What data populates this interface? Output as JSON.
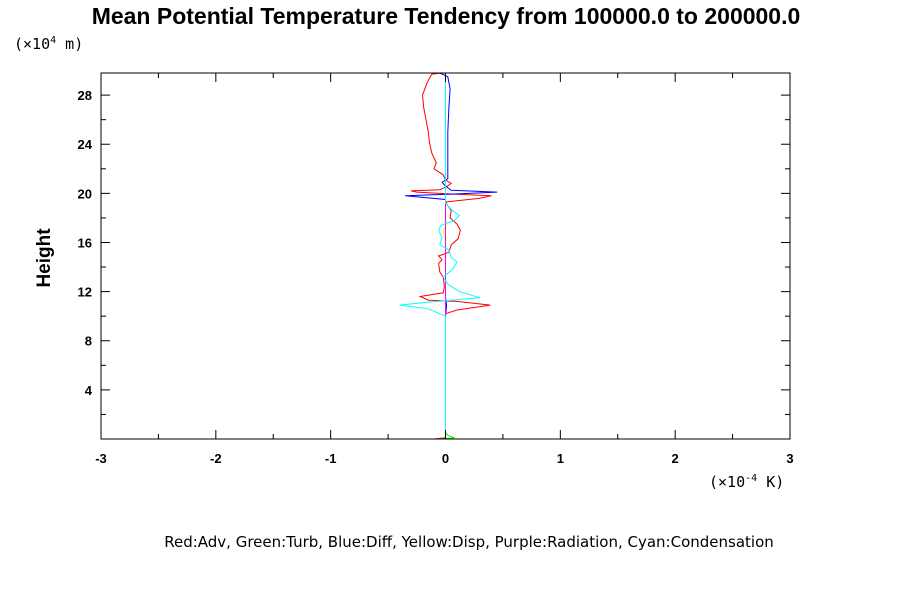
{
  "chart_data": {
    "type": "line",
    "title": "Mean Potential Temperature Tendency from 100000.0 to 200000.0",
    "ylabel": "Height",
    "y_unit": "(×10⁴ m)",
    "x_unit": "(×10⁻⁴ K)",
    "xlim": [
      -3,
      3
    ],
    "ylim": [
      0,
      29.8
    ],
    "x_ticks": [
      -3,
      -2,
      -1,
      0,
      1,
      2,
      3
    ],
    "x_tick_labels": [
      "-3",
      "-2",
      "-1",
      "0",
      "1",
      "2",
      "3"
    ],
    "y_ticks": [
      4,
      8,
      12,
      16,
      20,
      24,
      28
    ],
    "y_tick_labels": [
      "4",
      "8",
      "12",
      "16",
      "20",
      "24",
      "28"
    ],
    "grid": false,
    "legend_text": "Red:Adv, Green:Turb, Blue:Diff, Yellow:Disp, Purple:Radiation, Cyan:Condensation",
    "series": [
      {
        "name": "Adv",
        "color": "#ff0000",
        "points": [
          [
            -0.1,
            0
          ],
          [
            0,
            0.1
          ],
          [
            0,
            2
          ],
          [
            0,
            6
          ],
          [
            0,
            9
          ],
          [
            0,
            10.2
          ],
          [
            0.1,
            10.5
          ],
          [
            0.39,
            10.9
          ],
          [
            0.1,
            11.2
          ],
          [
            -0.15,
            11.3
          ],
          [
            -0.22,
            11.6
          ],
          [
            -0.02,
            11.9
          ],
          [
            -0.01,
            12.4
          ],
          [
            -0.02,
            13.2
          ],
          [
            -0.05,
            13.6
          ],
          [
            -0.06,
            14.3
          ],
          [
            -0.03,
            14.6
          ],
          [
            -0.06,
            14.9
          ],
          [
            0.03,
            15.2
          ],
          [
            0.05,
            15.8
          ],
          [
            0.11,
            16.3
          ],
          [
            0.13,
            17.0
          ],
          [
            0.1,
            17.5
          ],
          [
            0.04,
            18.0
          ],
          [
            0.05,
            18.6
          ],
          [
            0.02,
            19.0
          ],
          [
            0.0,
            19.3
          ],
          [
            0.3,
            19.6
          ],
          [
            0.4,
            19.8
          ],
          [
            0.05,
            19.95
          ],
          [
            -0.25,
            20.1
          ],
          [
            -0.3,
            20.2
          ],
          [
            -0.05,
            20.3
          ],
          [
            0.0,
            20.5
          ],
          [
            0.05,
            20.8
          ],
          [
            0.0,
            21.1
          ],
          [
            -0.02,
            21.5
          ],
          [
            -0.1,
            22.0
          ],
          [
            -0.08,
            22.5
          ],
          [
            -0.12,
            23.3
          ],
          [
            -0.14,
            24.2
          ],
          [
            -0.15,
            25.0
          ],
          [
            -0.17,
            26.0
          ],
          [
            -0.19,
            27.0
          ],
          [
            -0.2,
            28.0
          ],
          [
            -0.16,
            29.0
          ],
          [
            -0.12,
            29.7
          ],
          [
            -0.04,
            29.8
          ]
        ]
      },
      {
        "name": "Turb",
        "color": "#00ff00",
        "points": [
          [
            -0.05,
            0
          ],
          [
            0.08,
            0.1
          ],
          [
            0.02,
            0.3
          ],
          [
            0,
            0.5
          ],
          [
            0,
            29.8
          ]
        ]
      },
      {
        "name": "Diff",
        "color": "#0000ff",
        "points": [
          [
            0,
            0
          ],
          [
            0,
            10
          ],
          [
            0.01,
            10.9
          ],
          [
            0,
            11.5
          ],
          [
            0,
            19.5
          ],
          [
            -0.35,
            19.8
          ],
          [
            0.08,
            19.95
          ],
          [
            0.45,
            20.1
          ],
          [
            0.05,
            20.25
          ],
          [
            0,
            20.6
          ],
          [
            -0.03,
            20.9
          ],
          [
            0.02,
            21.2
          ],
          [
            0.02,
            22
          ],
          [
            0.02,
            25
          ],
          [
            0.03,
            27
          ],
          [
            0.04,
            28.5
          ],
          [
            0.02,
            29.5
          ],
          [
            -0.05,
            29.8
          ]
        ]
      },
      {
        "name": "Disp",
        "color": "#ffff00",
        "points": [
          [
            0,
            0
          ],
          [
            0,
            16
          ],
          [
            -0.02,
            17.0
          ],
          [
            0.01,
            17.5
          ],
          [
            0,
            18.0
          ],
          [
            0,
            29.8
          ]
        ]
      },
      {
        "name": "Radiation",
        "color": "#ff00ff",
        "points": [
          [
            0,
            0
          ],
          [
            0,
            29.8
          ]
        ]
      },
      {
        "name": "Condensation",
        "color": "#00ffff",
        "points": [
          [
            0,
            0
          ],
          [
            0,
            10.0
          ],
          [
            -0.15,
            10.6
          ],
          [
            -0.4,
            10.9
          ],
          [
            -0.2,
            11.1
          ],
          [
            0.05,
            11.3
          ],
          [
            0.3,
            11.5
          ],
          [
            0.12,
            12.0
          ],
          [
            0.02,
            12.6
          ],
          [
            -0.02,
            13.2
          ],
          [
            0.06,
            13.8
          ],
          [
            0.1,
            14.4
          ],
          [
            0.05,
            14.8
          ],
          [
            0.03,
            15.4
          ],
          [
            -0.05,
            15.8
          ],
          [
            -0.03,
            16.4
          ],
          [
            -0.06,
            17.0
          ],
          [
            -0.04,
            17.4
          ],
          [
            0.08,
            17.8
          ],
          [
            0.12,
            18.2
          ],
          [
            0.06,
            18.6
          ],
          [
            0.0,
            19.2
          ],
          [
            0.0,
            24
          ],
          [
            0.0,
            29.8
          ]
        ]
      }
    ]
  }
}
